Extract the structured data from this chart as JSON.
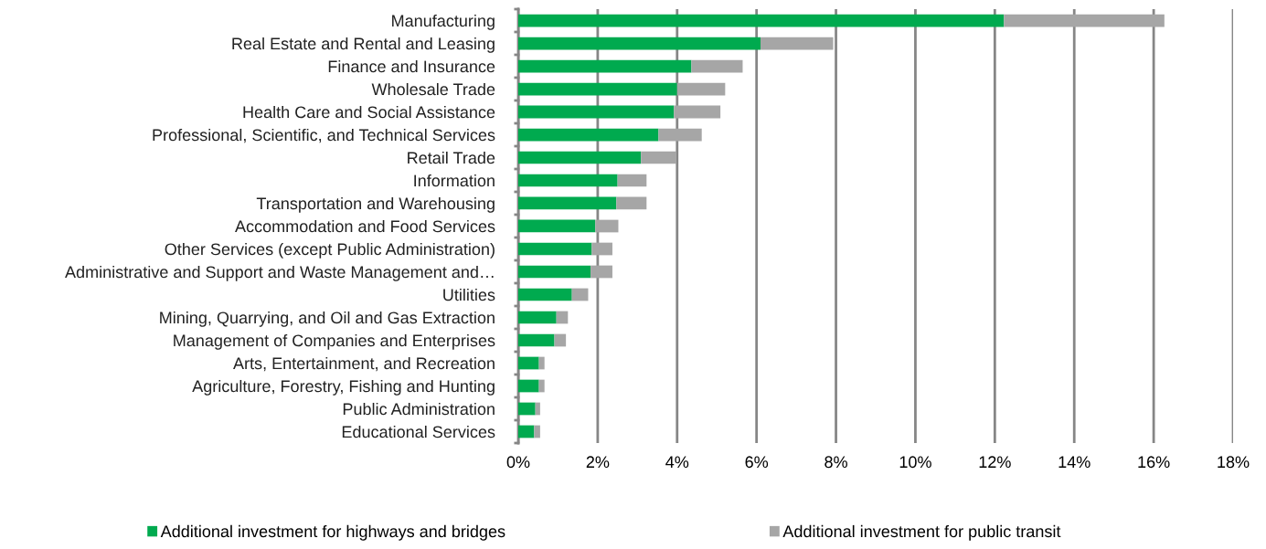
{
  "chart_data": {
    "type": "bar",
    "orientation": "horizontal",
    "stacked": true,
    "categories": [
      "Manufacturing",
      "Real Estate and Rental and Leasing",
      "Finance and Insurance",
      "Wholesale Trade",
      "Health Care and Social Assistance",
      "Professional, Scientific, and Technical Services",
      "Retail Trade",
      "Information",
      "Transportation and Warehousing",
      "Accommodation and Food Services",
      "Other Services (except Public Administration)",
      "Administrative and Support and Waste Management and…",
      "Utilities",
      "Mining, Quarrying, and Oil and Gas Extraction",
      "Management of Companies and Enterprises",
      "Arts, Entertainment, and Recreation",
      "Agriculture, Forestry, Fishing and Hunting",
      "Public Administration",
      "Educational Services"
    ],
    "series": [
      {
        "name": "Additional investment for highways and bridges",
        "color": "#00aa4f",
        "values": [
          12.23,
          6.1,
          4.36,
          4.0,
          3.92,
          3.53,
          3.09,
          2.5,
          2.47,
          1.94,
          1.85,
          1.82,
          1.35,
          0.96,
          0.91,
          0.52,
          0.52,
          0.43,
          0.4
        ]
      },
      {
        "name": "Additional investment for public transit",
        "color": "#a6a6a6",
        "values": [
          4.04,
          1.83,
          1.29,
          1.21,
          1.17,
          1.09,
          0.89,
          0.73,
          0.76,
          0.58,
          0.52,
          0.55,
          0.41,
          0.29,
          0.29,
          0.14,
          0.14,
          0.12,
          0.15
        ]
      }
    ],
    "xlim": [
      0,
      18
    ],
    "xticks": [
      {
        "value": 0,
        "label": "0%"
      },
      {
        "value": 2,
        "label": "2%"
      },
      {
        "value": 4,
        "label": "4%"
      },
      {
        "value": 6,
        "label": "6%"
      },
      {
        "value": 8,
        "label": "8%"
      },
      {
        "value": 10,
        "label": "10%"
      },
      {
        "value": 12,
        "label": "12%"
      },
      {
        "value": 14,
        "label": "14%"
      },
      {
        "value": 16,
        "label": "16%"
      },
      {
        "value": 18,
        "label": "18%"
      }
    ],
    "grid": "x",
    "legend": "bottom"
  }
}
